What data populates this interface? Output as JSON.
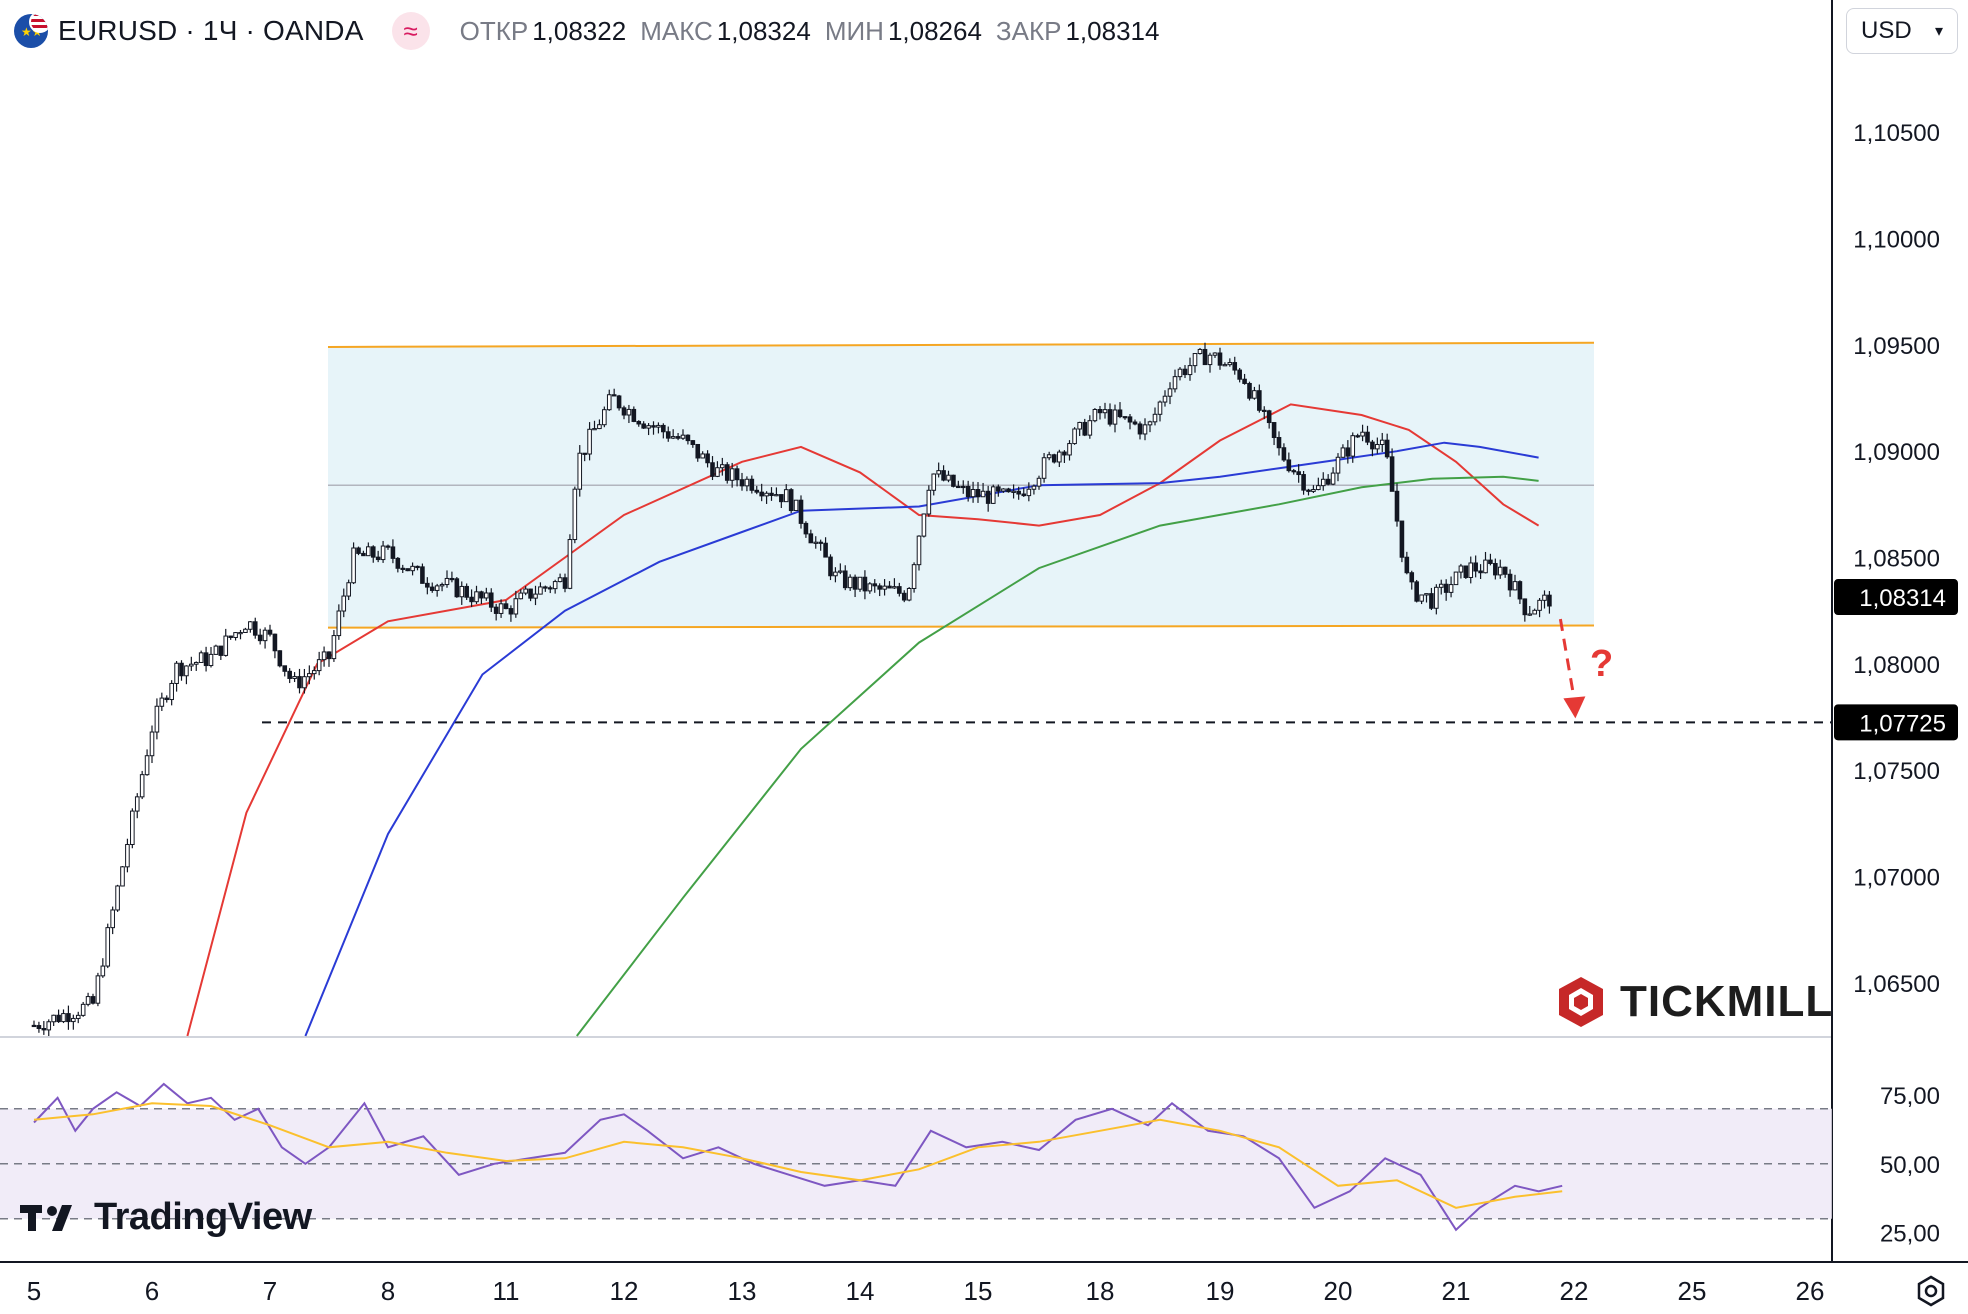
{
  "header": {
    "symbol": "EURUSD · 1Ч · OANDA",
    "symbol_icon": "eu-us-flag-icon",
    "indicator_badge": "≈",
    "ohlc": [
      {
        "key": "ОТКР",
        "value": "1,08322"
      },
      {
        "key": "МАКС",
        "value": "1,08324"
      },
      {
        "key": "МИН",
        "value": "1,08264"
      },
      {
        "key": "ЗАКР",
        "value": "1,08314"
      }
    ],
    "currency": "USD"
  },
  "branding": {
    "tickmill": "TICKMILL",
    "tradingview": "TradingView"
  },
  "chart_data": [
    {
      "type": "line",
      "title": "EURUSD · 1Ч · OANDA",
      "x_ticks": [
        "5",
        "6",
        "7",
        "8",
        "11",
        "12",
        "13",
        "14",
        "15",
        "18",
        "19",
        "20",
        "21",
        "22",
        "25",
        "26"
      ],
      "price_ticks": [
        "1,10500",
        "1,10000",
        "1,09500",
        "1,09000",
        "1,08500",
        "1,08000",
        "1,07500",
        "1,07000",
        "1,06500"
      ],
      "ylim": [
        1.0625,
        1.1083
      ],
      "last_price": {
        "label": "1,08314",
        "value": 1.08314
      },
      "target_level": {
        "label": "1,07725",
        "value": 1.07725
      },
      "annotation": "?",
      "range_box": {
        "upper_start": 1.0949,
        "upper_end": 1.0951,
        "lower_start": 1.0817,
        "lower_end": 1.0818,
        "mid": 1.0884
      },
      "price_path": [
        [
          0.0,
          1.063
        ],
        [
          0.5,
          1.064
        ],
        [
          1.0,
          1.077
        ],
        [
          1.2,
          1.0798
        ],
        [
          1.5,
          1.0803
        ],
        [
          1.8,
          1.082
        ],
        [
          2.0,
          1.0812
        ],
        [
          2.2,
          1.079
        ],
        [
          2.5,
          1.0803
        ],
        [
          2.7,
          1.085
        ],
        [
          3.0,
          1.0852
        ],
        [
          3.3,
          1.084
        ],
        [
          3.6,
          1.0835
        ],
        [
          4.0,
          1.0825
        ],
        [
          4.2,
          1.0833
        ],
        [
          4.5,
          1.084
        ],
        [
          4.6,
          1.0895
        ],
        [
          4.9,
          1.0925
        ],
        [
          5.2,
          1.0913
        ],
        [
          5.5,
          1.0905
        ],
        [
          5.8,
          1.089
        ],
        [
          6.1,
          1.0885
        ],
        [
          6.4,
          1.0878
        ],
        [
          6.8,
          1.084
        ],
        [
          7.1,
          1.0835
        ],
        [
          7.4,
          1.0833
        ],
        [
          7.6,
          1.089
        ],
        [
          7.9,
          1.088
        ],
        [
          8.3,
          1.0878
        ],
        [
          8.6,
          1.0897
        ],
        [
          9.0,
          1.0918
        ],
        [
          9.4,
          1.091
        ],
        [
          9.6,
          1.0935
        ],
        [
          9.9,
          1.0946
        ],
        [
          10.2,
          1.0935
        ],
        [
          10.5,
          1.09
        ],
        [
          10.8,
          1.088
        ],
        [
          11.2,
          1.091
        ],
        [
          11.4,
          1.09
        ],
        [
          11.6,
          1.0835
        ],
        [
          11.8,
          1.083
        ],
        [
          12.1,
          1.0845
        ],
        [
          12.4,
          1.0845
        ],
        [
          12.6,
          1.0825
        ],
        [
          12.8,
          1.0831
        ]
      ],
      "ma_series": [
        {
          "color": "#e53935",
          "points": [
            [
              1.3,
              1.0625
            ],
            [
              1.8,
              1.073
            ],
            [
              2.4,
              1.08
            ],
            [
              3.0,
              1.082
            ],
            [
              4.0,
              1.083
            ],
            [
              5.0,
              1.087
            ],
            [
              6.0,
              1.0895
            ],
            [
              6.5,
              1.0902
            ],
            [
              7.0,
              1.089
            ],
            [
              7.5,
              1.087
            ],
            [
              8.0,
              1.0868
            ],
            [
              8.5,
              1.0865
            ],
            [
              9.0,
              1.087
            ],
            [
              9.5,
              1.0885
            ],
            [
              10.0,
              1.0905
            ],
            [
              10.6,
              1.0922
            ],
            [
              11.2,
              1.0917
            ],
            [
              11.6,
              1.091
            ],
            [
              12.0,
              1.0895
            ],
            [
              12.4,
              1.0875
            ],
            [
              12.7,
              1.0865
            ]
          ]
        },
        {
          "color": "#2a3bd5",
          "points": [
            [
              2.3,
              1.0625
            ],
            [
              3.0,
              1.072
            ],
            [
              3.8,
              1.0795
            ],
            [
              4.5,
              1.0825
            ],
            [
              5.3,
              1.0848
            ],
            [
              6.0,
              1.0862
            ],
            [
              6.5,
              1.0872
            ],
            [
              7.5,
              1.0874
            ],
            [
              8.5,
              1.0884
            ],
            [
              9.5,
              1.0885
            ],
            [
              10.0,
              1.0888
            ],
            [
              10.5,
              1.0892
            ],
            [
              11.0,
              1.0896
            ],
            [
              11.5,
              1.09
            ],
            [
              11.9,
              1.0904
            ],
            [
              12.2,
              1.0902
            ],
            [
              12.7,
              1.0897
            ]
          ]
        },
        {
          "color": "#43a047",
          "points": [
            [
              4.6,
              1.0625
            ],
            [
              5.5,
              1.069
            ],
            [
              6.5,
              1.076
            ],
            [
              7.5,
              1.081
            ],
            [
              8.5,
              1.0845
            ],
            [
              9.5,
              1.0865
            ],
            [
              10.5,
              1.0875
            ],
            [
              11.2,
              1.0883
            ],
            [
              11.8,
              1.0887
            ],
            [
              12.4,
              1.0888
            ],
            [
              12.7,
              1.0886
            ]
          ]
        }
      ]
    },
    {
      "type": "line",
      "title": "",
      "ylim": [
        15,
        95
      ],
      "y_ticks": [
        "75,00",
        "50,00",
        "25,00"
      ],
      "levels": [
        70,
        50,
        30
      ],
      "rsi": [
        [
          0.0,
          65
        ],
        [
          0.2,
          74
        ],
        [
          0.35,
          62
        ],
        [
          0.5,
          70
        ],
        [
          0.7,
          76
        ],
        [
          0.9,
          71
        ],
        [
          1.1,
          79
        ],
        [
          1.3,
          72
        ],
        [
          1.5,
          74
        ],
        [
          1.7,
          66
        ],
        [
          1.9,
          70
        ],
        [
          2.1,
          56
        ],
        [
          2.3,
          50
        ],
        [
          2.5,
          56
        ],
        [
          2.8,
          72
        ],
        [
          3.0,
          56
        ],
        [
          3.3,
          60
        ],
        [
          3.6,
          46
        ],
        [
          3.9,
          50
        ],
        [
          4.2,
          52
        ],
        [
          4.5,
          54
        ],
        [
          4.8,
          66
        ],
        [
          5.0,
          68
        ],
        [
          5.2,
          62
        ],
        [
          5.5,
          52
        ],
        [
          5.8,
          56
        ],
        [
          6.1,
          50
        ],
        [
          6.4,
          46
        ],
        [
          6.7,
          42
        ],
        [
          7.0,
          44
        ],
        [
          7.3,
          42
        ],
        [
          7.6,
          62
        ],
        [
          7.9,
          56
        ],
        [
          8.2,
          58
        ],
        [
          8.5,
          55
        ],
        [
          8.8,
          66
        ],
        [
          9.1,
          70
        ],
        [
          9.4,
          64
        ],
        [
          9.6,
          72
        ],
        [
          9.9,
          62
        ],
        [
          10.2,
          60
        ],
        [
          10.5,
          52
        ],
        [
          10.8,
          34
        ],
        [
          11.1,
          40
        ],
        [
          11.4,
          52
        ],
        [
          11.7,
          46
        ],
        [
          12.0,
          26
        ],
        [
          12.2,
          34
        ],
        [
          12.5,
          42
        ],
        [
          12.7,
          40
        ],
        [
          12.9,
          42
        ]
      ],
      "rsi_ma": [
        [
          0.0,
          66
        ],
        [
          0.5,
          68
        ],
        [
          1.0,
          72
        ],
        [
          1.5,
          71
        ],
        [
          2.0,
          64
        ],
        [
          2.5,
          56
        ],
        [
          3.0,
          58
        ],
        [
          3.5,
          54
        ],
        [
          4.0,
          51
        ],
        [
          4.5,
          52
        ],
        [
          5.0,
          58
        ],
        [
          5.5,
          56
        ],
        [
          6.0,
          52
        ],
        [
          6.5,
          47
        ],
        [
          7.0,
          44
        ],
        [
          7.5,
          48
        ],
        [
          8.0,
          56
        ],
        [
          8.5,
          58
        ],
        [
          9.0,
          62
        ],
        [
          9.5,
          66
        ],
        [
          10.0,
          62
        ],
        [
          10.5,
          56
        ],
        [
          11.0,
          42
        ],
        [
          11.5,
          44
        ],
        [
          12.0,
          34
        ],
        [
          12.5,
          38
        ],
        [
          12.9,
          40
        ]
      ]
    }
  ]
}
